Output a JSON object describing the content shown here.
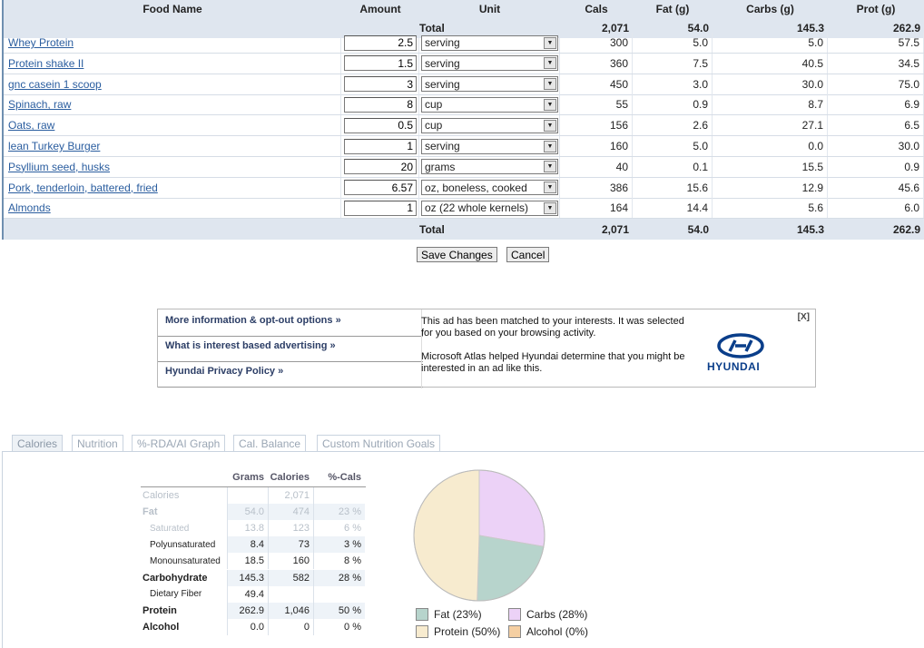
{
  "table": {
    "headers": {
      "food": "Food Name",
      "amount": "Amount",
      "unit": "Unit",
      "cals": "Cals",
      "fat": "Fat (g)",
      "carbs": "Carbs (g)",
      "prot": "Prot (g)"
    },
    "total": {
      "label": "Total",
      "cals": "2,071",
      "fat": "54.0",
      "carbs": "145.3",
      "prot": "262.9"
    },
    "rows": [
      {
        "name": "Whey Protein",
        "amount": "2.5",
        "unit": "serving",
        "cals": "300",
        "fat": "5.0",
        "carbs": "5.0",
        "prot": "57.5"
      },
      {
        "name": "Protein shake II",
        "amount": "1.5",
        "unit": "serving",
        "cals": "360",
        "fat": "7.5",
        "carbs": "40.5",
        "prot": "34.5"
      },
      {
        "name": "gnc casein 1 scoop",
        "amount": "3",
        "unit": "serving",
        "cals": "450",
        "fat": "3.0",
        "carbs": "30.0",
        "prot": "75.0"
      },
      {
        "name": "Spinach, raw",
        "amount": "8",
        "unit": "cup",
        "cals": "55",
        "fat": "0.9",
        "carbs": "8.7",
        "prot": "6.9"
      },
      {
        "name": "Oats, raw",
        "amount": "0.5",
        "unit": "cup",
        "cals": "156",
        "fat": "2.6",
        "carbs": "27.1",
        "prot": "6.5"
      },
      {
        "name": "lean Turkey Burger",
        "amount": "1",
        "unit": "serving",
        "cals": "160",
        "fat": "5.0",
        "carbs": "0.0",
        "prot": "30.0"
      },
      {
        "name": "Psyllium seed, husks",
        "amount": "20",
        "unit": "grams",
        "cals": "40",
        "fat": "0.1",
        "carbs": "15.5",
        "prot": "0.9"
      },
      {
        "name": "Pork, tenderloin, battered, fried",
        "amount": "6.57",
        "unit": "oz, boneless, cooked",
        "cals": "386",
        "fat": "15.6",
        "carbs": "12.9",
        "prot": "45.6"
      },
      {
        "name": "Almonds",
        "amount": "1",
        "unit": "oz (22 whole kernels)",
        "cals": "164",
        "fat": "14.4",
        "carbs": "5.6",
        "prot": "6.0"
      }
    ]
  },
  "actions": {
    "save": "Save Changes",
    "cancel": "Cancel"
  },
  "ad": {
    "links": [
      "More information & opt-out options »",
      "What is interest based advertising »",
      "Hyundai Privacy Policy »"
    ],
    "text1": "This ad has been matched to your interests. It was selected for you based on your browsing activity.",
    "text2": "Microsoft Atlas helped Hyundai determine that you might be interested in an ad like this.",
    "close": "[X]",
    "brand": "HYUNDAI",
    "logo_icon": "hyundai-logo"
  },
  "tabs": [
    "Calories",
    "Nutrition",
    "%-RDA/AI Graph",
    "Cal. Balance",
    "Custom Nutrition Goals"
  ],
  "summary": {
    "headers": [
      "Grams",
      "Calories",
      "%-Cals"
    ],
    "rows": [
      {
        "label": "Calories",
        "grams": "",
        "cals": "2,071",
        "pct": ""
      },
      {
        "label": "Fat",
        "grams": "54.0",
        "cals": "474",
        "pct": "23 %"
      },
      {
        "label": "Saturated",
        "grams": "13.8",
        "cals": "123",
        "pct": "6 %"
      },
      {
        "label": "Polyunsaturated",
        "grams": "8.4",
        "cals": "73",
        "pct": "3 %"
      },
      {
        "label": "Monounsaturated",
        "grams": "18.5",
        "cals": "160",
        "pct": "8 %"
      },
      {
        "label": "Carbohydrate",
        "grams": "145.3",
        "cals": "582",
        "pct": "28 %"
      },
      {
        "label": "Dietary Fiber",
        "grams": "49.4",
        "cals": "",
        "pct": ""
      },
      {
        "label": "Protein",
        "grams": "262.9",
        "cals": "1,046",
        "pct": "50 %"
      },
      {
        "label": "Alcohol",
        "grams": "0.0",
        "cals": "0",
        "pct": "0 %"
      }
    ]
  },
  "chart_data": {
    "type": "pie",
    "labels": [
      "Fat",
      "Carbs",
      "Protein",
      "Alcohol"
    ],
    "values": [
      23,
      28,
      50,
      0
    ],
    "legend": [
      "Fat  (23%)",
      "Carbs  (28%)",
      "Protein  (50%)",
      "Alcohol  (0%)"
    ],
    "colors": [
      "#b7d4cc",
      "#ecd2f7",
      "#f7ebcf",
      "#f5cfa2"
    ],
    "legend_position": "bottom"
  }
}
